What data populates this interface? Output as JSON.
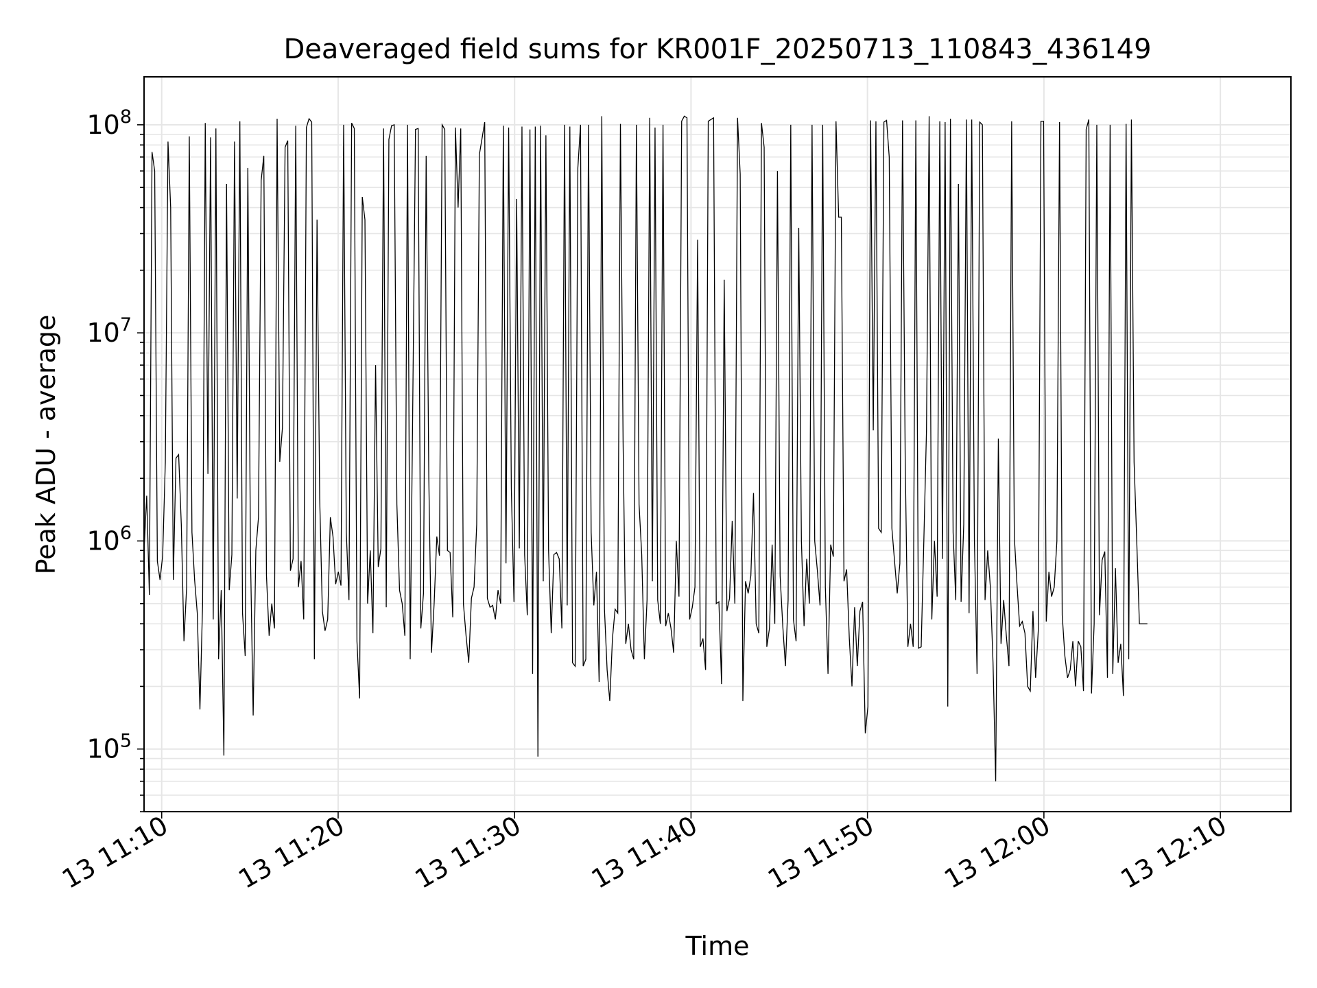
{
  "chart_data": {
    "type": "line",
    "title": "Deaveraged field sums for KR001F_20250713_110843_436149",
    "xlabel": "Time",
    "ylabel": "Peak ADU - average",
    "yscale": "log",
    "ylim": [
      50000,
      170000000
    ],
    "xlim_minutes": [
      "13 11:09",
      "13 12:14"
    ],
    "grid": true,
    "line_color": "#000000",
    "x_ticks": [
      "13 11:10",
      "13 11:20",
      "13 11:30",
      "13 11:40",
      "13 11:50",
      "13 12:00",
      "13 12:10"
    ],
    "y_ticks": [
      {
        "base": "10",
        "exp": "5",
        "value": 100000
      },
      {
        "base": "10",
        "exp": "6",
        "value": 1000000
      },
      {
        "base": "10",
        "exp": "7",
        "value": 10000000
      },
      {
        "base": "10",
        "exp": "8",
        "value": 100000000
      }
    ],
    "series": [
      {
        "start": "13 11:09",
        "step_seconds": 9.05,
        "values": [
          900000,
          1650000,
          550000,
          74000000,
          60000000,
          800000,
          650000,
          850000,
          2400000,
          83000000,
          40000000,
          650000,
          2500000,
          2600000,
          1200000,
          330000,
          600000,
          88000000,
          1100000,
          650000,
          450000,
          155000,
          500000,
          102000000,
          2100000,
          87000000,
          420000,
          96000000,
          270000,
          580000,
          93000,
          52000000,
          580000,
          860000,
          83000000,
          1600000,
          104000000,
          450000,
          280000,
          62000000,
          850000,
          145000,
          900000,
          1300000,
          54000000,
          71000000,
          680000,
          350000,
          500000,
          380000,
          107000000,
          2400000,
          3500000,
          78000000,
          84000000,
          720000,
          820000,
          99000000,
          600000,
          800000,
          420000,
          97000000,
          107000000,
          103000000,
          270000,
          35000000,
          1600000,
          460000,
          370000,
          420000,
          1300000,
          1050000,
          620000,
          710000,
          610000,
          100000000,
          1100000,
          520000,
          102000000,
          96000000,
          330000,
          175000,
          45000000,
          35000000,
          500000,
          900000,
          360000,
          7000000,
          750000,
          920000,
          96000000,
          480000,
          85000000,
          99000000,
          100000000,
          1500000,
          580000,
          500000,
          350000,
          100000000,
          270000,
          5000000,
          95000000,
          96000000,
          380000,
          560000,
          71000000,
          2000000,
          290000,
          500000,
          1050000,
          850000,
          100000000,
          95000000,
          900000,
          880000,
          430000,
          97000000,
          40000000,
          96000000,
          500000,
          350000,
          260000,
          530000,
          600000,
          1200000,
          72000000,
          86000000,
          103000000,
          530000,
          480000,
          490000,
          420000,
          580000,
          500000,
          99000000,
          780000,
          97000000,
          1800000,
          510000,
          44000000,
          920000,
          98000000,
          860000,
          440000,
          95000000,
          230000,
          98000000,
          92000,
          99000000,
          640000,
          89000000,
          900000,
          360000,
          860000,
          880000,
          820000,
          380000,
          100000000,
          490000,
          98000000,
          260000,
          250000,
          62000000,
          100000000,
          250000,
          270000,
          100000000,
          1100000,
          490000,
          710000,
          210000,
          110000000,
          470000,
          240000,
          170000,
          340000,
          470000,
          450000,
          101000000,
          3000000,
          320000,
          400000,
          300000,
          270000,
          100000000,
          1500000,
          860000,
          270000,
          520000,
          108000000,
          640000,
          97000000,
          520000,
          400000,
          100000000,
          390000,
          450000,
          380000,
          290000,
          1000000,
          540000,
          104000000,
          110000000,
          108000000,
          420000,
          480000,
          600000,
          28000000,
          310000,
          340000,
          240000,
          104000000,
          106000000,
          108000000,
          500000,
          510000,
          205000,
          18000000,
          460000,
          530000,
          1250000,
          500000,
          108000000,
          58000000,
          170000,
          640000,
          560000,
          680000,
          1700000,
          400000,
          360000,
          102000000,
          78000000,
          310000,
          380000,
          960000,
          400000,
          60000000,
          680000,
          390000,
          250000,
          520000,
          100000000,
          420000,
          330000,
          32000000,
          1000000,
          390000,
          820000,
          500000,
          100000000,
          1000000,
          720000,
          490000,
          100000000,
          600000,
          230000,
          960000,
          840000,
          104000000,
          36000000,
          36000000,
          640000,
          730000,
          340000,
          200000,
          480000,
          250000,
          460000,
          510000,
          119000,
          160000,
          105000000,
          3400000,
          104000000,
          1150000,
          1100000,
          103000000,
          105000000,
          70000000,
          1150000,
          800000,
          560000,
          780000,
          105000000,
          2500000,
          310000,
          400000,
          310000,
          105000000,
          305000,
          310000,
          1000000,
          3400000,
          110000000,
          420000,
          1000000,
          540000,
          104000000,
          820000,
          103000000,
          160000,
          107000000,
          1100000,
          520000,
          52000000,
          510000,
          1200000,
          106000000,
          450000,
          106000000,
          1020000,
          230000,
          103000000,
          100000000,
          520000,
          900000,
          600000,
          260000,
          70000,
          3100000,
          320000,
          520000,
          350000,
          250000,
          104000000,
          1050000,
          620000,
          390000,
          410000,
          360000,
          200000,
          190000,
          460000,
          220000,
          370000,
          104000000,
          104000000,
          410000,
          710000,
          540000,
          600000,
          1000000,
          103000000,
          440000,
          280000,
          220000,
          240000,
          330000,
          200000,
          330000,
          310000,
          190000,
          95000000,
          106000000,
          185000,
          400000,
          100000000,
          440000,
          810000,
          890000,
          220000,
          100000000,
          230000,
          740000,
          260000,
          320000,
          180000,
          101000000,
          270000,
          106000000,
          2400000,
          1000000,
          400000,
          400000,
          400000,
          400000
        ]
      }
    ]
  }
}
